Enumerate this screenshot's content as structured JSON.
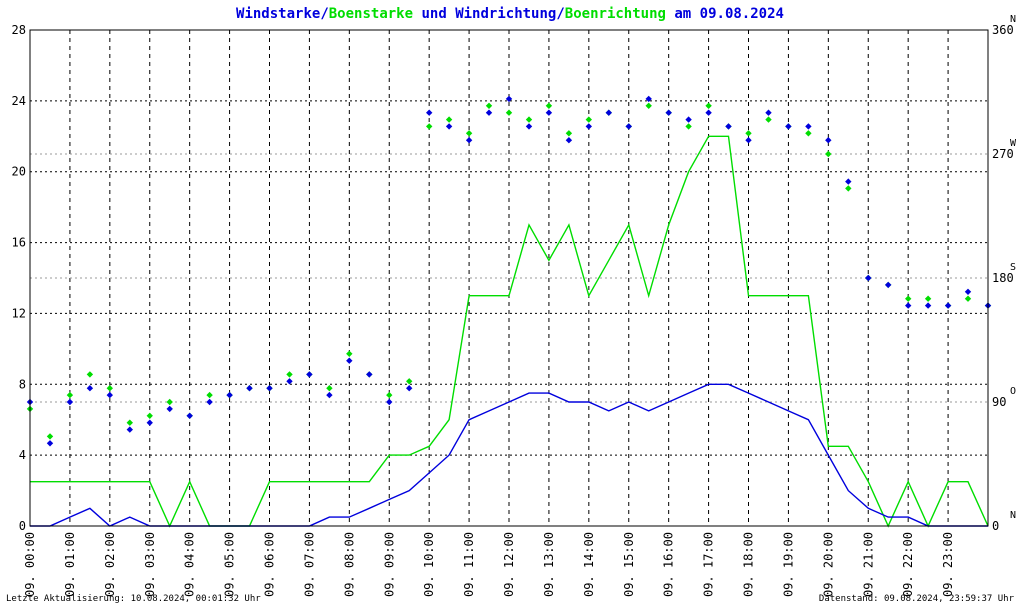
{
  "title": {
    "part1": "Windstarke",
    "sep1": "/",
    "part2": "Boenstarke",
    "part3": " und ",
    "part4": "Windrichtung",
    "sep2": "/",
    "part5": "Boenrichtung",
    "part6": " am 09.08.2024"
  },
  "footer": {
    "left": "Letzte Aktualisierung: 10.08.2024, 00:01:32 Uhr",
    "right": "Datenstand: 09.08.2024, 23:59:37 Uhr"
  },
  "colors": {
    "wind": "#0000dd",
    "gust": "#00dd00",
    "grid": "#000000",
    "border": "#000000",
    "marker": "#cc0000"
  },
  "chart_data": {
    "type": "line",
    "title": "Windstarke/Boenstarke und Windrichtung/Boenrichtung am 09.08.2024",
    "x_tick_labels": [
      "09. 00:00",
      "09. 01:00",
      "09. 02:00",
      "09. 03:00",
      "09. 04:00",
      "09. 05:00",
      "09. 06:00",
      "09. 07:00",
      "09. 08:00",
      "09. 09:00",
      "09. 10:00",
      "09. 11:00",
      "09. 12:00",
      "09. 13:00",
      "09. 14:00",
      "09. 15:00",
      "09. 16:00",
      "09. 17:00",
      "09. 18:00",
      "09. 19:00",
      "09. 20:00",
      "09. 21:00",
      "09. 22:00",
      "09. 23:00"
    ],
    "xlim": [
      0,
      24
    ],
    "y_left_ticks": [
      "0",
      "4",
      "8",
      "12",
      "16",
      "20",
      "24",
      "28"
    ],
    "ylim_left": [
      0,
      28
    ],
    "y_right_ticks": [
      "0",
      "90",
      "180",
      "270",
      "360"
    ],
    "y_right_compass": [
      "N",
      "O",
      "S",
      "W",
      "N"
    ],
    "ylim_right": [
      0,
      360
    ],
    "grid": true,
    "series": [
      {
        "name": "Windstarke",
        "kind": "line",
        "hours": [
          0,
          0.5,
          1,
          1.5,
          2,
          2.5,
          3,
          3.5,
          4,
          4.5,
          5,
          5.5,
          6,
          6.5,
          7,
          7.5,
          8,
          8.5,
          9,
          9.5,
          10,
          10.5,
          11,
          11.5,
          12,
          12.5,
          13,
          13.5,
          14,
          14.5,
          15,
          15.5,
          16,
          16.5,
          17,
          17.5,
          18,
          18.5,
          19,
          19.5,
          20,
          20.5,
          21,
          21.5,
          22,
          22.5,
          23,
          23.5,
          24
        ],
        "values": [
          0,
          0,
          0.5,
          1,
          0,
          0.5,
          0,
          0,
          0,
          0,
          0,
          0,
          0,
          0,
          0,
          0.5,
          0.5,
          1,
          1.5,
          2,
          3,
          4,
          6,
          6.5,
          7,
          7.5,
          7.5,
          7,
          7,
          6.5,
          7,
          6.5,
          7,
          7.5,
          8,
          8,
          7.5,
          7,
          6.5,
          6,
          4,
          2,
          1,
          0.5,
          0.5,
          0,
          0,
          0,
          0
        ]
      },
      {
        "name": "Boenstarke",
        "kind": "line",
        "hours": [
          0,
          0.5,
          1,
          1.5,
          2,
          2.5,
          3,
          3.5,
          4,
          4.5,
          5,
          5.5,
          6,
          6.5,
          7,
          7.5,
          8,
          8.5,
          9,
          9.5,
          10,
          10.5,
          11,
          11.5,
          12,
          12.5,
          13,
          13.5,
          14,
          14.5,
          15,
          15.5,
          16,
          16.5,
          17,
          17.5,
          18,
          18.5,
          19,
          19.5,
          20,
          20.5,
          21,
          21.5,
          22,
          22.5,
          23,
          23.5,
          24
        ],
        "values": [
          2.5,
          2.5,
          2.5,
          2.5,
          2.5,
          2.5,
          2.5,
          0,
          2.5,
          0,
          0,
          0,
          2.5,
          2.5,
          2.5,
          2.5,
          2.5,
          2.5,
          4,
          4,
          4.5,
          6,
          13,
          13,
          13,
          17,
          15,
          17,
          13,
          15,
          17,
          13,
          17,
          20,
          22,
          22,
          13,
          13,
          13,
          13,
          4.5,
          4.5,
          2.5,
          0,
          2.5,
          0,
          2.5,
          2.5,
          0
        ]
      },
      {
        "name": "Windrichtung",
        "kind": "scatter",
        "hours": [
          0,
          0.5,
          1,
          1.5,
          2,
          2.5,
          3,
          3.5,
          4,
          4.5,
          5,
          5.5,
          6,
          6.5,
          7,
          7.5,
          8,
          8.5,
          9,
          9.5,
          10,
          10.5,
          11,
          11.5,
          12,
          12.5,
          13,
          13.5,
          14,
          14.5,
          15,
          15.5,
          16,
          16.5,
          17,
          17.5,
          18,
          18.5,
          19,
          19.5,
          20,
          20.5,
          21,
          21.5,
          22,
          22.5,
          23,
          23.5,
          24
        ],
        "values": [
          90,
          60,
          90,
          100,
          95,
          70,
          75,
          85,
          80,
          90,
          95,
          100,
          100,
          105,
          110,
          95,
          120,
          110,
          90,
          100,
          300,
          290,
          280,
          300,
          310,
          290,
          300,
          280,
          290,
          300,
          290,
          310,
          300,
          295,
          300,
          290,
          280,
          300,
          290,
          290,
          280,
          250,
          180,
          175,
          160,
          160,
          160,
          170,
          160
        ]
      },
      {
        "name": "Boenrichtung",
        "kind": "scatter",
        "hours": [
          0,
          0.5,
          1,
          1.5,
          2,
          2.5,
          3,
          3.5,
          4,
          4.5,
          5,
          5.5,
          6,
          6.5,
          7,
          7.5,
          8,
          8.5,
          9,
          9.5,
          10,
          10.5,
          11,
          11.5,
          12,
          12.5,
          13,
          13.5,
          14,
          14.5,
          15,
          15.5,
          16,
          16.5,
          17,
          17.5,
          18,
          18.5,
          19,
          19.5,
          20,
          20.5,
          21,
          21.5,
          22,
          22.5,
          23,
          23.5,
          24
        ],
        "values": [
          85,
          65,
          95,
          110,
          100,
          75,
          80,
          90,
          80,
          95,
          95,
          100,
          100,
          110,
          110,
          100,
          125,
          110,
          95,
          105,
          290,
          295,
          285,
          305,
          300,
          295,
          305,
          285,
          295,
          300,
          290,
          305,
          300,
          290,
          305,
          290,
          285,
          295,
          290,
          285,
          270,
          245,
          180,
          175,
          165,
          165,
          160,
          165,
          160
        ]
      }
    ]
  }
}
